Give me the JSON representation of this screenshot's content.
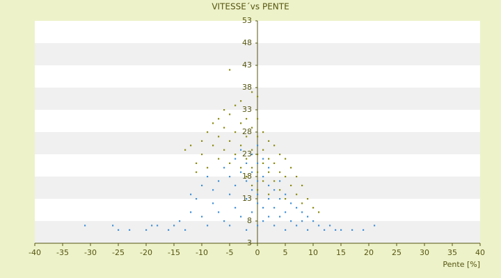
{
  "chart_data": {
    "type": "scatter",
    "title": "VITESSE´vs PENTE",
    "x_label": "Pente [%]",
    "xlim": [
      -40,
      40
    ],
    "xticks": [
      -40,
      -35,
      -30,
      -25,
      -20,
      -15,
      -10,
      -5,
      0,
      5,
      10,
      15,
      20,
      25,
      30,
      35,
      40
    ],
    "ylim": [
      3,
      53
    ],
    "yticks": [
      3,
      8,
      13,
      18,
      23,
      28,
      33,
      38,
      43,
      48,
      53
    ],
    "grid": true,
    "series": [
      {
        "color": "#3f8fd6",
        "x": [
          -31,
          -26,
          -25,
          -23,
          -20,
          -18,
          -15,
          -14,
          -13,
          -12,
          -12,
          -11,
          -10,
          -10,
          -9,
          -9,
          -8,
          -8,
          -7,
          -7,
          -6,
          -6,
          -5,
          -5,
          -5,
          -4,
          -4,
          -4,
          -3,
          -3,
          -3,
          -2,
          -2,
          -2,
          -2,
          -1,
          -1,
          -1,
          -1,
          0,
          0,
          0,
          0,
          0,
          0,
          1,
          1,
          1,
          1,
          2,
          2,
          2,
          2,
          3,
          3,
          3,
          4,
          4,
          4,
          5,
          5,
          5,
          6,
          6,
          7,
          7,
          8,
          8,
          9,
          9,
          10,
          11,
          12,
          13,
          14,
          15,
          17,
          19,
          21,
          -16,
          -19
        ],
        "values": [
          7,
          7,
          6,
          6,
          6,
          7,
          7,
          8,
          6,
          10,
          14,
          13,
          16,
          9,
          18,
          7,
          12,
          15,
          17,
          10,
          20,
          8,
          14,
          18,
          7,
          22,
          11,
          16,
          19,
          9,
          24,
          13,
          17,
          21,
          6,
          15,
          23,
          10,
          19,
          25,
          12,
          17,
          7,
          21,
          14,
          18,
          11,
          22,
          8,
          16,
          20,
          9,
          13,
          15,
          11,
          7,
          17,
          13,
          9,
          14,
          10,
          6,
          12,
          8,
          11,
          7,
          10,
          8,
          9,
          6,
          8,
          7,
          6,
          7,
          6,
          6,
          6,
          6,
          7,
          6,
          7
        ]
      },
      {
        "color": "#8a8a10",
        "x": [
          -13,
          -12,
          -11,
          -11,
          -10,
          -10,
          -9,
          -9,
          -8,
          -8,
          -7,
          -7,
          -7,
          -6,
          -6,
          -6,
          -5,
          -5,
          -5,
          -5,
          -4,
          -4,
          -4,
          -3,
          -3,
          -3,
          -3,
          -2,
          -2,
          -2,
          -2,
          -1,
          -1,
          -1,
          -1,
          -1,
          0,
          0,
          0,
          0,
          0,
          0,
          1,
          1,
          1,
          1,
          2,
          2,
          2,
          2,
          3,
          3,
          3,
          4,
          4,
          4,
          5,
          5,
          5,
          6,
          6,
          7,
          7,
          8,
          8,
          9,
          10,
          11
        ],
        "values": [
          24,
          25,
          21,
          19,
          23,
          26,
          20,
          28,
          25,
          30,
          22,
          31,
          27,
          24,
          33,
          29,
          42,
          26,
          32,
          21,
          34,
          28,
          23,
          30,
          25,
          20,
          35,
          27,
          31,
          22,
          18,
          37,
          29,
          24,
          20,
          16,
          36,
          31,
          27,
          23,
          19,
          15,
          28,
          24,
          21,
          17,
          26,
          22,
          19,
          14,
          25,
          21,
          17,
          23,
          19,
          15,
          22,
          18,
          13,
          20,
          16,
          18,
          14,
          16,
          12,
          13,
          11,
          10
        ]
      }
    ]
  }
}
